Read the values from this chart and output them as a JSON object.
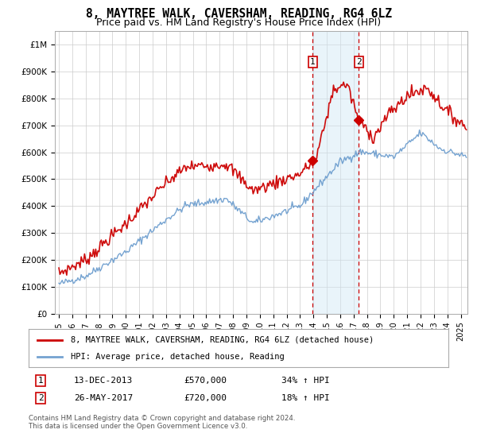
{
  "title": "8, MAYTREE WALK, CAVERSHAM, READING, RG4 6LZ",
  "subtitle": "Price paid vs. HM Land Registry's House Price Index (HPI)",
  "ylim": [
    0,
    1050000
  ],
  "yticks": [
    0,
    100000,
    200000,
    300000,
    400000,
    500000,
    600000,
    700000,
    800000,
    900000,
    1000000
  ],
  "ytick_labels": [
    "£0",
    "£100K",
    "£200K",
    "£300K",
    "£400K",
    "£500K",
    "£600K",
    "£700K",
    "£800K",
    "£900K",
    "£1M"
  ],
  "xlim_start": 1994.7,
  "xlim_end": 2025.5,
  "xtick_years": [
    1995,
    1996,
    1997,
    1998,
    1999,
    2000,
    2001,
    2002,
    2003,
    2004,
    2005,
    2006,
    2007,
    2008,
    2009,
    2010,
    2011,
    2012,
    2013,
    2014,
    2015,
    2016,
    2017,
    2018,
    2019,
    2020,
    2021,
    2022,
    2023,
    2024,
    2025
  ],
  "sale1_x": 2013.95,
  "sale1_y": 570000,
  "sale1_label": "1",
  "sale2_x": 2017.38,
  "sale2_y": 720000,
  "sale2_label": "2",
  "sale_color": "#cc0000",
  "shaded_region_color": "#d0e8f5",
  "shaded_alpha": 0.45,
  "red_line_color": "#cc0000",
  "blue_line_color": "#6699cc",
  "legend_label_red": "8, MAYTREE WALK, CAVERSHAM, READING, RG4 6LZ (detached house)",
  "legend_label_blue": "HPI: Average price, detached house, Reading",
  "annotation1_date": "13-DEC-2013",
  "annotation1_price": "£570,000",
  "annotation1_hpi": "34% ↑ HPI",
  "annotation2_date": "26-MAY-2017",
  "annotation2_price": "£720,000",
  "annotation2_hpi": "18% ↑ HPI",
  "footer": "Contains HM Land Registry data © Crown copyright and database right 2024.\nThis data is licensed under the Open Government Licence v3.0.",
  "background_color": "#ffffff",
  "grid_color": "#cccccc",
  "title_fontsize": 10.5,
  "subtitle_fontsize": 9
}
